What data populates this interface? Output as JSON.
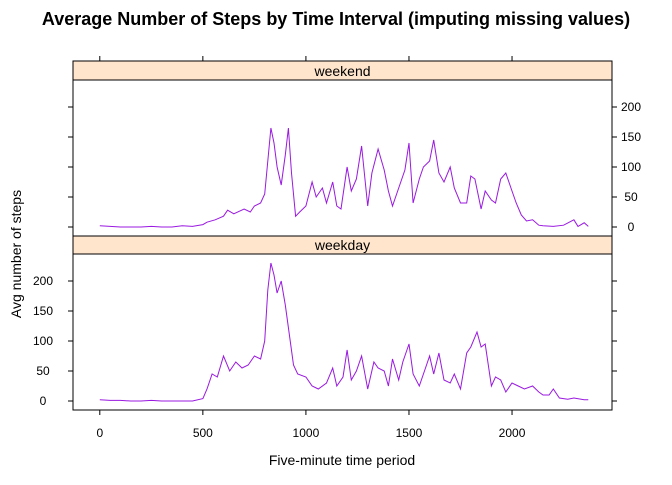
{
  "chart_data": {
    "type": "line",
    "title": "Average Number of Steps by Time Interval (imputing missing values)",
    "xlabel": "Five-minute time period",
    "ylabel": "Avg number of steps",
    "xlim": [
      -130,
      2485
    ],
    "ylim": [
      -15,
      245
    ],
    "x_ticks": [
      0,
      500,
      1000,
      1500,
      2000
    ],
    "y_ticks": [
      0,
      50,
      100,
      150,
      200
    ],
    "x_tick_labels": [
      "0",
      "500",
      "1000",
      "1500",
      "2000"
    ],
    "y_tick_labels": [
      "0",
      "50",
      "100",
      "150",
      "200"
    ],
    "grid": false,
    "legend": "none",
    "line_color": "#9a19e0",
    "strip_color": "#ffe5cc",
    "panels": [
      {
        "name": "weekend",
        "x": [
          0,
          50,
          100,
          150,
          200,
          250,
          300,
          350,
          400,
          450,
          500,
          520,
          560,
          600,
          620,
          650,
          700,
          730,
          750,
          780,
          800,
          815,
          830,
          845,
          860,
          880,
          900,
          915,
          930,
          950,
          970,
          1000,
          1030,
          1050,
          1080,
          1100,
          1130,
          1150,
          1170,
          1200,
          1220,
          1245,
          1270,
          1300,
          1320,
          1350,
          1380,
          1400,
          1420,
          1450,
          1480,
          1500,
          1520,
          1550,
          1570,
          1600,
          1620,
          1645,
          1670,
          1700,
          1720,
          1750,
          1780,
          1800,
          1820,
          1850,
          1870,
          1900,
          1920,
          1945,
          1970,
          2000,
          2020,
          2045,
          2070,
          2100,
          2130,
          2150,
          2200,
          2250,
          2300,
          2320,
          2350,
          2370
        ],
        "y": [
          2,
          1,
          0,
          0,
          0,
          1,
          0,
          0,
          2,
          1,
          4,
          8,
          12,
          18,
          28,
          22,
          30,
          25,
          35,
          40,
          55,
          110,
          165,
          140,
          100,
          70,
          120,
          165,
          90,
          18,
          25,
          35,
          75,
          50,
          65,
          40,
          75,
          35,
          30,
          100,
          60,
          80,
          135,
          35,
          90,
          130,
          95,
          60,
          35,
          65,
          95,
          140,
          40,
          80,
          100,
          110,
          145,
          90,
          75,
          100,
          65,
          40,
          40,
          85,
          80,
          30,
          60,
          45,
          40,
          80,
          90,
          60,
          40,
          20,
          10,
          12,
          3,
          2,
          1,
          3,
          12,
          1,
          7,
          1
        ]
      },
      {
        "name": "weekday",
        "x": [
          0,
          50,
          100,
          150,
          200,
          250,
          300,
          350,
          400,
          450,
          500,
          520,
          545,
          570,
          600,
          630,
          660,
          690,
          720,
          750,
          780,
          800,
          815,
          830,
          845,
          860,
          880,
          900,
          920,
          940,
          960,
          1000,
          1030,
          1060,
          1100,
          1130,
          1150,
          1180,
          1200,
          1220,
          1245,
          1270,
          1300,
          1330,
          1350,
          1380,
          1400,
          1420,
          1450,
          1470,
          1500,
          1520,
          1550,
          1580,
          1600,
          1620,
          1645,
          1670,
          1700,
          1720,
          1750,
          1780,
          1800,
          1830,
          1850,
          1870,
          1900,
          1920,
          1945,
          1970,
          2000,
          2030,
          2060,
          2100,
          2130,
          2150,
          2180,
          2200,
          2230,
          2270,
          2300,
          2350,
          2370
        ],
        "y": [
          2,
          1,
          1,
          0,
          0,
          1,
          0,
          0,
          0,
          0,
          4,
          20,
          45,
          40,
          75,
          50,
          65,
          55,
          60,
          75,
          70,
          100,
          185,
          230,
          210,
          180,
          200,
          160,
          110,
          60,
          45,
          40,
          25,
          20,
          30,
          55,
          25,
          40,
          85,
          35,
          50,
          75,
          20,
          65,
          55,
          50,
          25,
          70,
          35,
          65,
          95,
          45,
          25,
          55,
          75,
          45,
          80,
          35,
          30,
          45,
          20,
          80,
          90,
          115,
          90,
          95,
          25,
          40,
          35,
          15,
          30,
          25,
          20,
          25,
          15,
          10,
          10,
          20,
          5,
          3,
          5,
          2,
          2
        ]
      }
    ]
  }
}
